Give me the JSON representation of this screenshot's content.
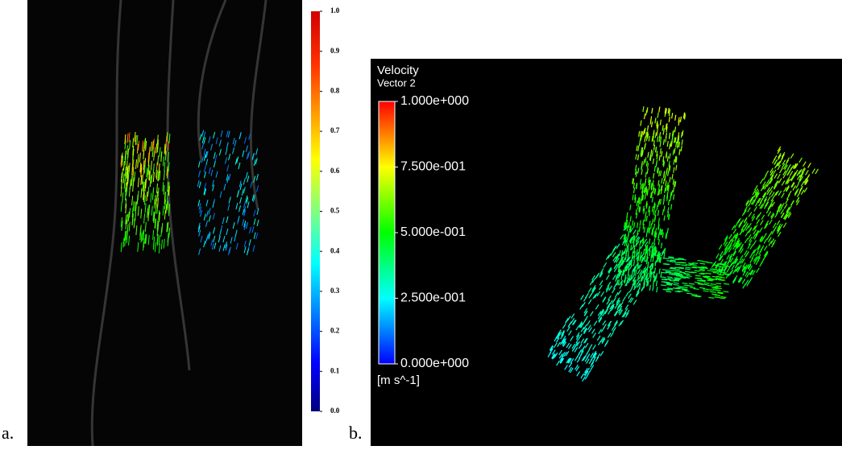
{
  "panels": [
    {
      "label": "a.",
      "colorbar": {
        "ticks": [
          {
            "value": 1.0,
            "label": "1.0"
          },
          {
            "value": 0.9,
            "label": "0.9"
          },
          {
            "value": 0.8,
            "label": "0.8"
          },
          {
            "value": 0.7,
            "label": "0.7"
          },
          {
            "value": 0.6,
            "label": "0.6"
          },
          {
            "value": 0.5,
            "label": "0.5"
          },
          {
            "value": 0.4,
            "label": "0.4"
          },
          {
            "value": 0.3,
            "label": "0.3"
          },
          {
            "value": 0.2,
            "label": "0.2"
          },
          {
            "value": 0.1,
            "label": "0.1"
          },
          {
            "value": 0.0,
            "label": "0.0"
          }
        ]
      }
    },
    {
      "label": "b.",
      "legend_title": "Velocity",
      "legend_subtitle": "Vector 2",
      "unit": "[m s^-1]",
      "colorbar": {
        "ticks": [
          {
            "value": 1.0,
            "label": "1.000e+000"
          },
          {
            "value": 0.75,
            "label": "7.500e-001"
          },
          {
            "value": 0.5,
            "label": "5.000e-001"
          },
          {
            "value": 0.25,
            "label": "2.500e-001"
          },
          {
            "value": 0.0,
            "label": "0.000e+000"
          }
        ]
      }
    }
  ]
}
